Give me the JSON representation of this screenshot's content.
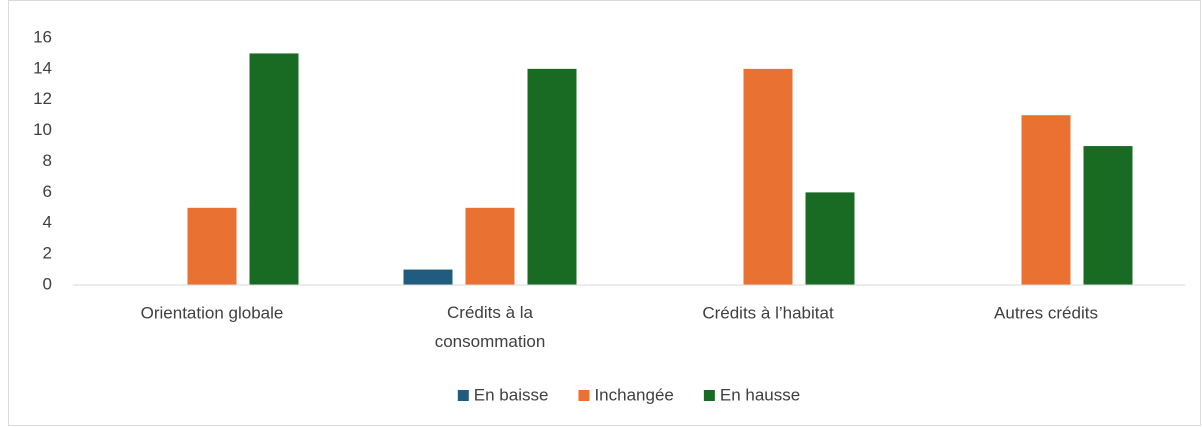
{
  "chart_data": {
    "type": "bar",
    "categories": [
      "Orientation globale",
      "Crédits à la consommation",
      "Crédits à l’habitat",
      "Autres crédits"
    ],
    "series": [
      {
        "name": "En baisse",
        "color": "#1f5c7f",
        "values": [
          0,
          1,
          0,
          0
        ]
      },
      {
        "name": "Inchangée",
        "color": "#e97132",
        "values": [
          5,
          5,
          14,
          11
        ]
      },
      {
        "name": "En hausse",
        "color": "#196b24",
        "values": [
          15,
          14,
          6,
          9
        ]
      }
    ],
    "ylim": [
      0,
      16
    ],
    "yticks": [
      0,
      2,
      4,
      6,
      8,
      10,
      12,
      14,
      16
    ],
    "grid": false,
    "legend": "bottom"
  }
}
